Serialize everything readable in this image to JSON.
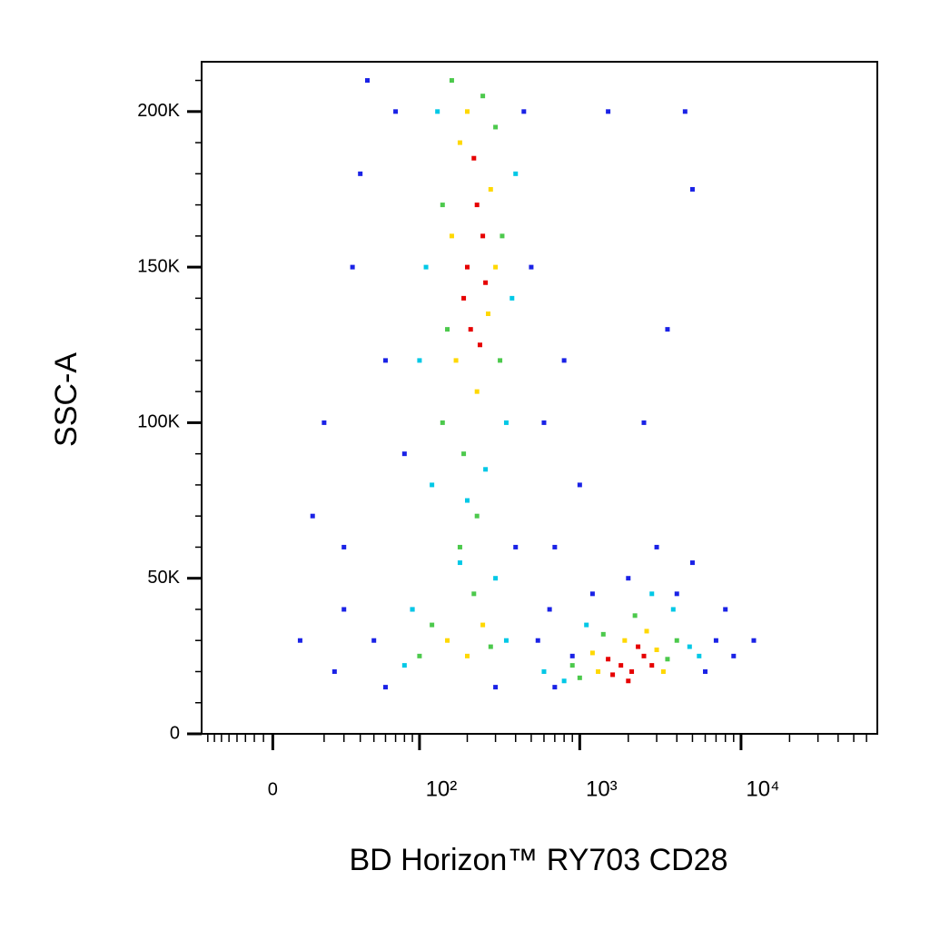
{
  "chart_data": {
    "type": "scatter",
    "x_label": "BD Horizon™ RY703 CD28",
    "y_label": "SSC-A",
    "x_scale": "biexponential",
    "xlim": [
      -30,
      70000
    ],
    "ylim": [
      0,
      216000
    ],
    "xticks": [
      0,
      {
        "value": 100,
        "label": "10²"
      },
      {
        "value": 1000,
        "label": "10³"
      },
      {
        "value": 10000,
        "label": "10⁴"
      }
    ],
    "yticks": [
      0,
      {
        "value": 50000,
        "label": "50K"
      },
      {
        "value": 100000,
        "label": "100K"
      },
      {
        "value": 150000,
        "label": "150K"
      },
      {
        "value": 200000,
        "label": "200K"
      }
    ],
    "series": [
      {
        "color": "#1a22e6",
        "x": [
          40,
          60,
          30,
          70,
          50,
          25,
          500,
          600,
          700,
          450,
          550,
          20,
          35,
          80,
          90,
          650,
          800,
          1000,
          10,
          15,
          45,
          400,
          6000,
          7000,
          8000,
          5000,
          3000,
          2000,
          9000,
          12000,
          4000,
          700,
          300,
          2500,
          3500,
          1500,
          5000,
          4500,
          30,
          60,
          900,
          1200
        ],
        "y": [
          180000,
          120000,
          60000,
          200000,
          30000,
          20000,
          150000,
          100000,
          60000,
          200000,
          30000,
          100000,
          150000,
          90000,
          40000,
          40000,
          120000,
          80000,
          30000,
          70000,
          210000,
          60000,
          20000,
          30000,
          40000,
          55000,
          60000,
          50000,
          25000,
          30000,
          45000,
          15000,
          15000,
          100000,
          130000,
          200000,
          175000,
          200000,
          40000,
          15000,
          25000,
          45000
        ]
      },
      {
        "color": "#00c8e6",
        "x": [
          110,
          380,
          120,
          260,
          350,
          130,
          400,
          90,
          300,
          80,
          350,
          200,
          180,
          800,
          4800,
          3800,
          1100,
          2800,
          600,
          5500,
          100
        ],
        "y": [
          150000,
          140000,
          80000,
          85000,
          100000,
          200000,
          180000,
          40000,
          50000,
          22000,
          30000,
          75000,
          55000,
          17000,
          28000,
          40000,
          35000,
          45000,
          20000,
          25000,
          120000
        ]
      },
      {
        "color": "#4cc94c",
        "x": [
          140,
          300,
          320,
          150,
          190,
          250,
          160,
          330,
          140,
          120,
          220,
          280,
          180,
          230,
          100,
          1000,
          4000,
          2200,
          1400,
          3500,
          900
        ],
        "y": [
          100000,
          195000,
          120000,
          130000,
          90000,
          205000,
          210000,
          160000,
          170000,
          35000,
          45000,
          28000,
          60000,
          70000,
          25000,
          18000,
          30000,
          38000,
          32000,
          24000,
          22000
        ]
      },
      {
        "color": "#ffd800",
        "x": [
          170,
          280,
          300,
          180,
          230,
          200,
          270,
          160,
          150,
          200,
          250,
          1300,
          3000,
          2600,
          1200,
          3300,
          1900
        ],
        "y": [
          120000,
          175000,
          150000,
          190000,
          110000,
          200000,
          135000,
          160000,
          30000,
          25000,
          35000,
          20000,
          27000,
          33000,
          26000,
          20000,
          30000
        ]
      },
      {
        "color": "#e60000",
        "x": [
          200,
          230,
          210,
          250,
          190,
          220,
          260,
          240,
          1800,
          2100,
          2500,
          1600,
          2300,
          2000,
          2800,
          1500
        ],
        "y": [
          150000,
          170000,
          130000,
          160000,
          140000,
          185000,
          145000,
          125000,
          22000,
          20000,
          25000,
          19000,
          28000,
          17000,
          22000,
          24000
        ]
      }
    ]
  }
}
